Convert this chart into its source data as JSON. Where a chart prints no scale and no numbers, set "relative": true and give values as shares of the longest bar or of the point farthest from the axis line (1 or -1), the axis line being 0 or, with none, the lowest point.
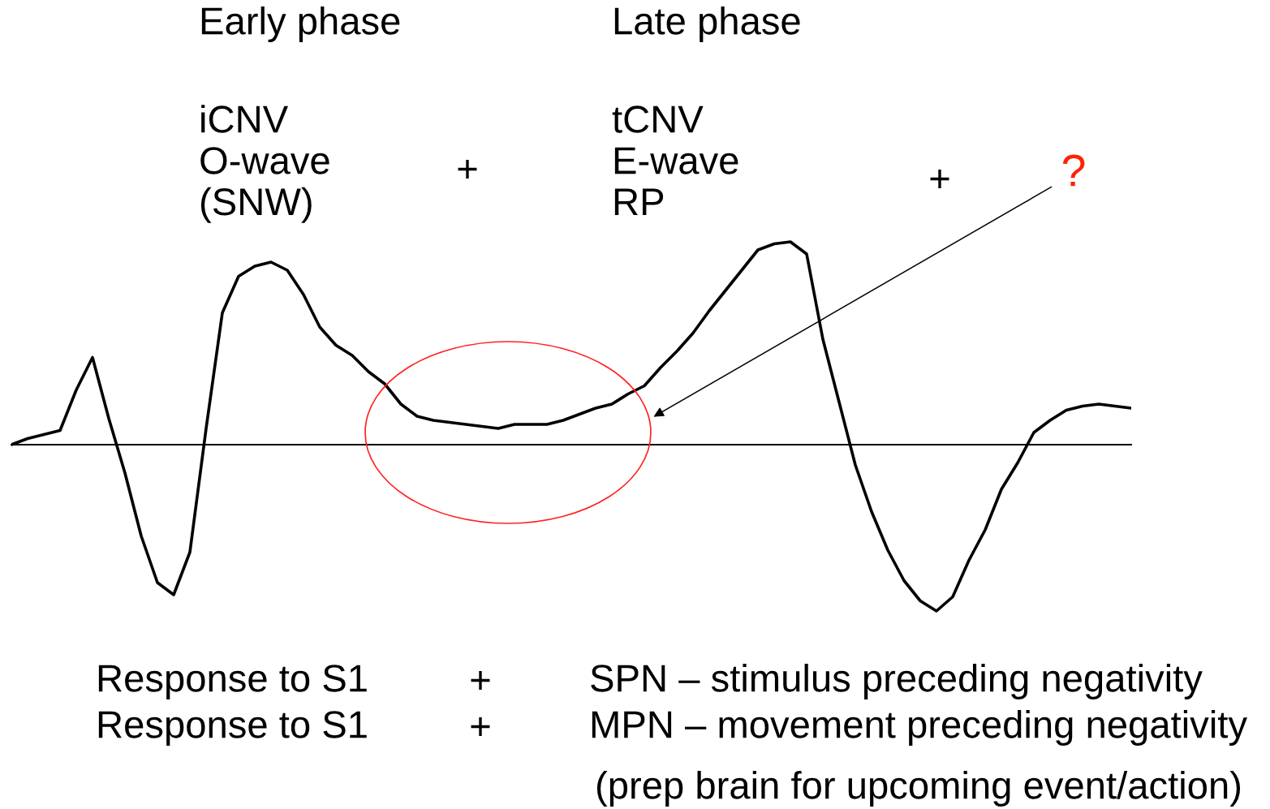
{
  "chart_data": {
    "type": "line",
    "relative": true,
    "color": "#000000",
    "categories": [
      null,
      null,
      null,
      null,
      null,
      null,
      null,
      null,
      null,
      null,
      null,
      null,
      null,
      null,
      null,
      null,
      null,
      null,
      null,
      null,
      null,
      null,
      null,
      null,
      null,
      null,
      null,
      null,
      null,
      null,
      null,
      null,
      null,
      null,
      null,
      null,
      null,
      null,
      null,
      null,
      null,
      null,
      null,
      null,
      null,
      null,
      null,
      null,
      null,
      null,
      null,
      null,
      null,
      null,
      null,
      null,
      null,
      null,
      null,
      null,
      null,
      null,
      null,
      null,
      null,
      null,
      null,
      null,
      null,
      null
    ],
    "values": [
      0.0,
      0.03,
      0.05,
      0.07,
      0.27,
      0.43,
      0.13,
      -0.14,
      -0.45,
      -0.68,
      -0.74,
      -0.53,
      0.08,
      0.65,
      0.83,
      0.88,
      0.9,
      0.86,
      0.74,
      0.58,
      0.49,
      0.44,
      0.36,
      0.3,
      0.2,
      0.14,
      0.12,
      0.11,
      0.1,
      0.09,
      0.08,
      0.1,
      0.1,
      0.1,
      0.12,
      0.15,
      0.18,
      0.2,
      0.25,
      0.29,
      0.38,
      0.46,
      0.55,
      0.66,
      0.76,
      0.86,
      0.96,
      0.99,
      1.0,
      0.94,
      0.52,
      0.21,
      -0.1,
      -0.33,
      -0.52,
      -0.67,
      -0.77,
      -0.82,
      -0.75,
      -0.57,
      -0.42,
      -0.22,
      -0.09,
      0.06,
      0.12,
      0.17,
      0.19,
      0.2,
      0.19,
      0.18
    ],
    "annotations": [
      "Early phase",
      "iCNV\nO-wave\n(SNW)",
      "+",
      "Late phase",
      "tCNV\nE-wave\nRP",
      "+",
      "?",
      "Response to S1",
      "+",
      "SPN – stimulus preceding negativity",
      "Response to S1",
      "+",
      "MPN – movement preceding negativity",
      "(prep brain for upcoming event/action)"
    ]
  }
}
